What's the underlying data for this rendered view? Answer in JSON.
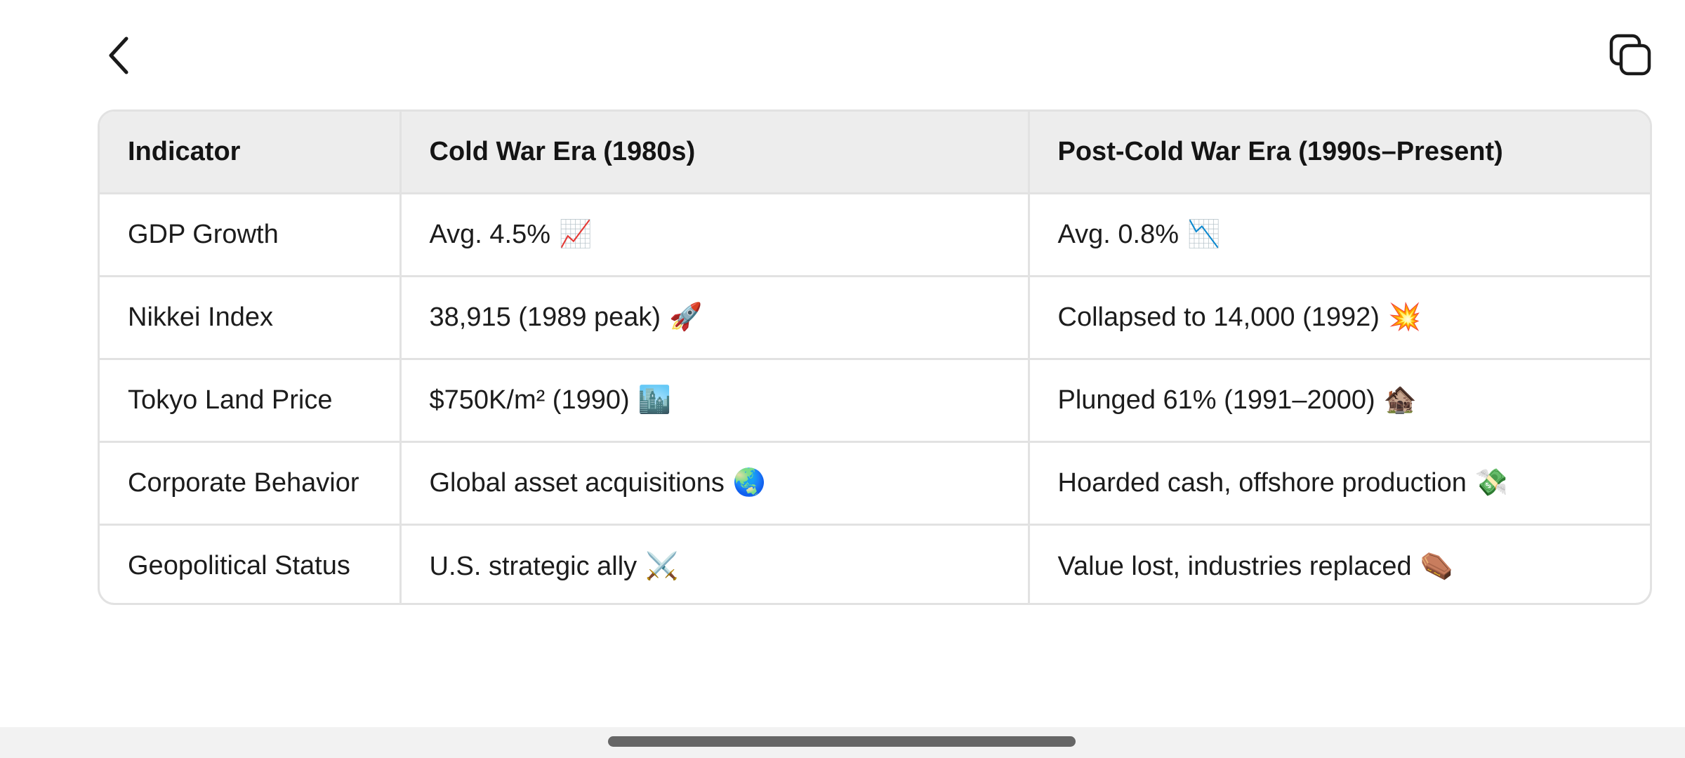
{
  "toolbar": {
    "back_icon": "chevron-left-icon",
    "copy_icon": "copy-icon"
  },
  "table": {
    "headers": [
      "Indicator",
      "Cold War Era (1980s)",
      "Post-Cold War Era (1990s–Present)"
    ],
    "rows": [
      {
        "indicator": "GDP Growth",
        "cold_war": "Avg. 4.5%",
        "cold_war_emoji": "📈",
        "post_cold_war": "Avg. 0.8%",
        "post_cold_war_emoji": "📉"
      },
      {
        "indicator": "Nikkei Index",
        "cold_war": "38,915 (1989 peak)",
        "cold_war_emoji": "🚀",
        "post_cold_war": "Collapsed to 14,000 (1992)",
        "post_cold_war_emoji": "💥"
      },
      {
        "indicator": "Tokyo Land Price",
        "cold_war": "$750K/m² (1990)",
        "cold_war_emoji": "🏙️",
        "post_cold_war": "Plunged 61% (1991–2000)",
        "post_cold_war_emoji": "🏚️"
      },
      {
        "indicator": "Corporate Behavior",
        "cold_war": "Global asset acquisitions",
        "cold_war_emoji": "🌏",
        "post_cold_war": "Hoarded cash, offshore production",
        "post_cold_war_emoji": "💸"
      },
      {
        "indicator": "Geopolitical Status",
        "cold_war": "U.S. strategic ally",
        "cold_war_emoji": "⚔️",
        "post_cold_war": "Value lost, industries replaced",
        "post_cold_war_emoji": "⚰️"
      }
    ]
  }
}
